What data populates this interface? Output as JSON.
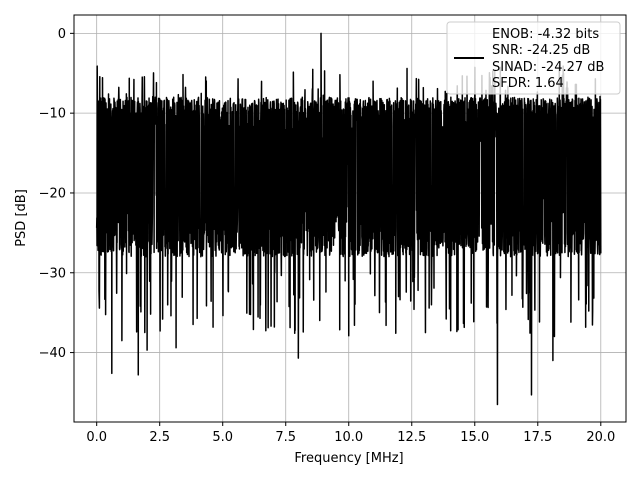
{
  "chart_data": {
    "type": "line",
    "title": "",
    "xlabel": "Frequency [MHz]",
    "ylabel": "PSD [dB]",
    "xlim": [
      -0.9,
      21.0
    ],
    "ylim": [
      -48.7,
      2.3
    ],
    "x_ticks": [
      0.0,
      2.5,
      5.0,
      7.5,
      10.0,
      12.5,
      15.0,
      17.5,
      20.0
    ],
    "x_tick_labels": [
      "0.0",
      "2.5",
      "5.0",
      "7.5",
      "10.0",
      "12.5",
      "15.0",
      "17.5",
      "20.0"
    ],
    "y_ticks": [
      0,
      -10,
      -20,
      -30,
      -40
    ],
    "y_tick_labels": [
      "0",
      "−10",
      "−20",
      "−30",
      "−40"
    ],
    "grid": true,
    "legend_position": "top-right",
    "series": [
      {
        "color": "#000000",
        "x_range": [
          0.0,
          20.0
        ],
        "baseline": -17,
        "band_upper_typical": -9,
        "band_lower_typical": -27,
        "notable_points": [
          {
            "x": 0.02,
            "y": -4.1
          },
          {
            "x": 0.05,
            "y": -8.5
          },
          {
            "x": 0.08,
            "y": -15.5
          },
          {
            "x": 0.1,
            "y": -33.3
          },
          {
            "x": 0.6,
            "y": -42.6
          },
          {
            "x": 1.0,
            "y": -38.5
          },
          {
            "x": 1.65,
            "y": -42.8
          },
          {
            "x": 2.0,
            "y": -39.7
          },
          {
            "x": 3.15,
            "y": -39.4
          },
          {
            "x": 8.0,
            "y": -40.7
          },
          {
            "x": 8.9,
            "y": 0.0
          },
          {
            "x": 10.0,
            "y": -37.9
          },
          {
            "x": 15.9,
            "y": -46.5
          },
          {
            "x": 17.25,
            "y": -45.3
          },
          {
            "x": 18.1,
            "y": -41.0
          }
        ]
      }
    ],
    "legend": {
      "lines": [
        "ENOB: -4.32 bits",
        "SNR: -24.25 dB",
        "SINAD: -24.27 dB",
        "SFDR: 1.64"
      ]
    }
  }
}
